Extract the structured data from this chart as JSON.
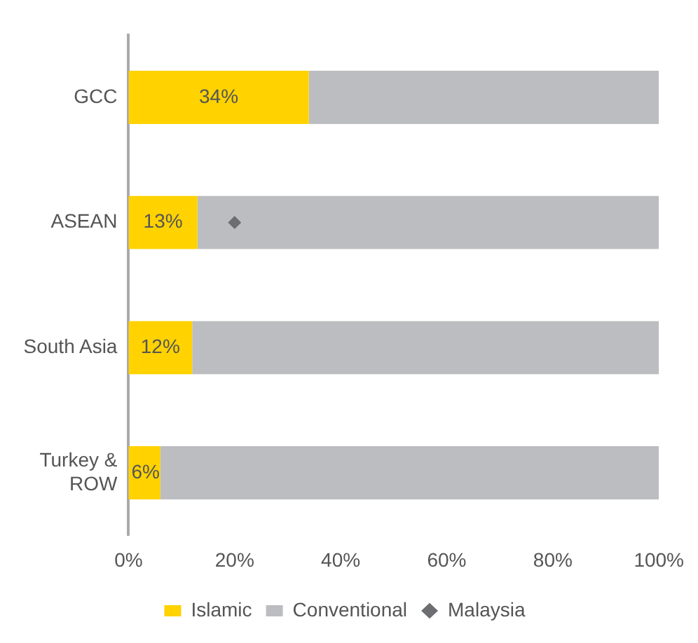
{
  "chart_data": {
    "type": "bar",
    "orientation": "horizontal",
    "stacked": true,
    "categories": [
      "GCC",
      "ASEAN",
      "South Asia",
      "Turkey & ROW"
    ],
    "series": [
      {
        "name": "Islamic",
        "color": "#ffd200",
        "values": [
          34,
          13,
          12,
          6
        ],
        "value_labels": [
          "34%",
          "13%",
          "12%",
          "6%"
        ]
      },
      {
        "name": "Conventional",
        "color": "#bcbdc0",
        "values": [
          66,
          87,
          88,
          94
        ]
      },
      {
        "name": "Malaysia",
        "type": "scatter",
        "color": "#6d6e71",
        "x": [
          "ASEAN"
        ],
        "values": [
          20
        ],
        "marker": "diamond"
      }
    ],
    "xlim": [
      0,
      100
    ],
    "xticks": [
      {
        "value": 0,
        "label": "0%"
      },
      {
        "value": 20,
        "label": "20%"
      },
      {
        "value": 40,
        "label": "40%"
      },
      {
        "value": 60,
        "label": "60%"
      },
      {
        "value": 80,
        "label": "80%"
      },
      {
        "value": 100,
        "label": "100%"
      }
    ],
    "grid": false,
    "legend": "bottom"
  }
}
